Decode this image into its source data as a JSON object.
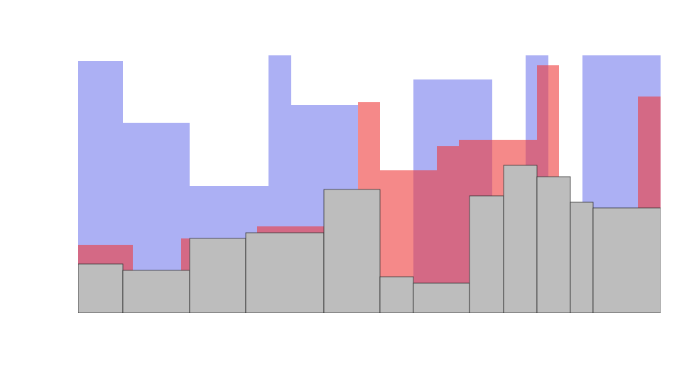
{
  "chart_data": {
    "type": "bar",
    "tick_labels": false,
    "grid": false,
    "xlim": [
      0,
      820
    ],
    "ylim": [
      0,
      370
    ],
    "series": [
      {
        "color": "#9da2f2",
        "x0": [
          0,
          63,
          157,
          268,
          300,
          472,
          630,
          710
        ],
        "x1": [
          63,
          157,
          268,
          300,
          394,
          583,
          662,
          820
        ],
        "values": [
          355,
          268,
          179,
          363,
          293,
          329,
          363,
          363
        ]
      },
      {
        "color": "#ee3b3b",
        "x0": [
          0,
          145,
          252,
          394,
          425,
          505,
          536,
          646,
          788
        ],
        "x1": [
          77,
          157,
          346,
          425,
          505,
          536,
          646,
          677,
          820
        ],
        "values": [
          96,
          105,
          122,
          297,
          201,
          235,
          244,
          349,
          305
        ]
      },
      {
        "color": "#bdbdbd",
        "x0": [
          0,
          63,
          157,
          236,
          346,
          425,
          472,
          551,
          599,
          646,
          693,
          725
        ],
        "x1": [
          63,
          157,
          236,
          346,
          425,
          472,
          551,
          599,
          646,
          693,
          725,
          820
        ],
        "values": [
          69,
          60,
          105,
          113,
          174,
          51,
          42,
          165,
          208,
          192,
          156,
          148
        ]
      }
    ]
  }
}
